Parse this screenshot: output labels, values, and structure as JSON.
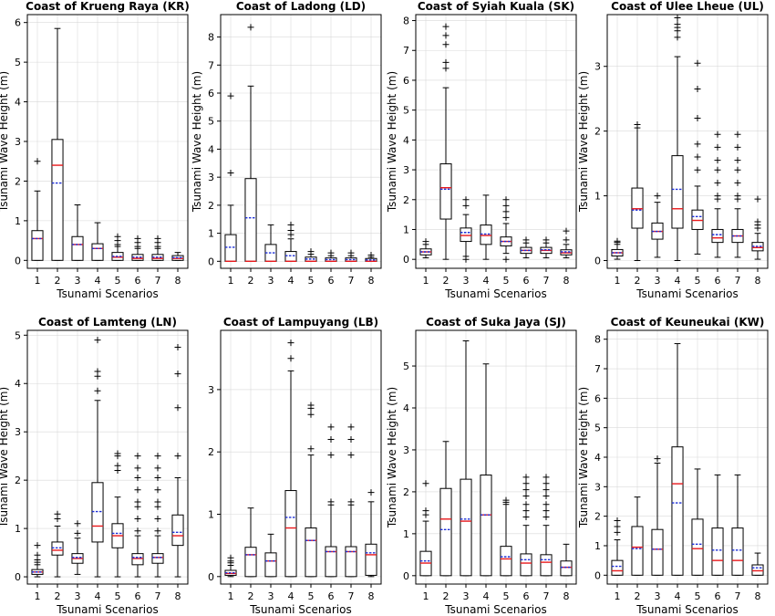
{
  "chart_data": [
    {
      "type": "box",
      "title": "Coast of Krueng Raya (KR)",
      "xlabel": "Tsunami Scenarios",
      "ylabel": "Tsunami Wave Height (m)",
      "categories": [
        "1",
        "2",
        "3",
        "4",
        "5",
        "6",
        "7",
        "8"
      ],
      "ylim": [
        -0.2,
        6.2
      ],
      "yticks": [
        0,
        1,
        2,
        3,
        4,
        5,
        6
      ],
      "grid": true,
      "boxes": [
        {
          "q1": 0,
          "median": 0.55,
          "q3": 0.75,
          "mean": 0.55,
          "whisker_low": 0,
          "whisker_high": 1.75,
          "fliers": [
            2.5
          ]
        },
        {
          "q1": 0,
          "median": 2.4,
          "q3": 3.05,
          "mean": 1.95,
          "whisker_low": 0,
          "whisker_high": 5.85,
          "fliers": []
        },
        {
          "q1": 0,
          "median": 0.4,
          "q3": 0.6,
          "mean": 0.4,
          "whisker_low": 0,
          "whisker_high": 1.4,
          "fliers": []
        },
        {
          "q1": 0,
          "median": 0.3,
          "q3": 0.42,
          "mean": 0.3,
          "whisker_low": 0,
          "whisker_high": 0.95,
          "fliers": []
        },
        {
          "q1": 0,
          "median": 0.08,
          "q3": 0.2,
          "mean": 0.1,
          "whisker_low": 0,
          "whisker_high": 0.35,
          "fliers": [
            0.4,
            0.5,
            0.6
          ]
        },
        {
          "q1": 0,
          "median": 0.05,
          "q3": 0.15,
          "mean": 0.08,
          "whisker_low": 0,
          "whisker_high": 0.3,
          "fliers": [
            0.35,
            0.45,
            0.55
          ]
        },
        {
          "q1": 0,
          "median": 0.05,
          "q3": 0.15,
          "mean": 0.08,
          "whisker_low": 0,
          "whisker_high": 0.3,
          "fliers": [
            0.35,
            0.45,
            0.55
          ]
        },
        {
          "q1": 0,
          "median": 0.05,
          "q3": 0.12,
          "mean": 0.07,
          "whisker_low": 0,
          "whisker_high": 0.2,
          "fliers": []
        }
      ]
    },
    {
      "type": "box",
      "title": "Coast of Ladong (LD)",
      "xlabel": "",
      "ylabel": "Tsunami Wave Height (m)",
      "categories": [
        "1",
        "2",
        "3",
        "4",
        "5",
        "6",
        "7",
        "8"
      ],
      "ylim": [
        -0.25,
        8.8
      ],
      "yticks": [
        0,
        1,
        2,
        3,
        4,
        5,
        6,
        7,
        8
      ],
      "grid": true,
      "boxes": [
        {
          "q1": 0,
          "median": 0,
          "q3": 0.95,
          "mean": 0.5,
          "whisker_low": 0,
          "whisker_high": 2.0,
          "fliers": [
            3.15,
            5.9
          ]
        },
        {
          "q1": 0,
          "median": 0,
          "q3": 2.95,
          "mean": 1.55,
          "whisker_low": 0,
          "whisker_high": 6.25,
          "fliers": [
            8.35
          ]
        },
        {
          "q1": 0,
          "median": 0,
          "q3": 0.6,
          "mean": 0.3,
          "whisker_low": 0,
          "whisker_high": 1.3,
          "fliers": []
        },
        {
          "q1": 0,
          "median": 0,
          "q3": 0.35,
          "mean": 0.2,
          "whisker_low": 0,
          "whisker_high": 0.8,
          "fliers": [
            0.95,
            1.1,
            1.3
          ]
        },
        {
          "q1": 0,
          "median": 0,
          "q3": 0.15,
          "mean": 0.08,
          "whisker_low": 0,
          "whisker_high": 0.25,
          "fliers": [
            0.35
          ]
        },
        {
          "q1": 0,
          "median": 0,
          "q3": 0.12,
          "mean": 0.06,
          "whisker_low": 0,
          "whisker_high": 0.2,
          "fliers": [
            0.3
          ]
        },
        {
          "q1": 0,
          "median": 0,
          "q3": 0.12,
          "mean": 0.06,
          "whisker_low": 0,
          "whisker_high": 0.2,
          "fliers": [
            0.3
          ]
        },
        {
          "q1": 0,
          "median": 0,
          "q3": 0.1,
          "mean": 0.05,
          "whisker_low": 0,
          "whisker_high": 0.15,
          "fliers": [
            0.22
          ]
        }
      ]
    },
    {
      "type": "box",
      "title": "Coast of Syiah Kuala (SK)",
      "xlabel": "Tsunami Scenarios",
      "ylabel": "Tsunami Wave Height (m)",
      "categories": [
        "1",
        "2",
        "3",
        "4",
        "5",
        "6",
        "7",
        "8"
      ],
      "ylim": [
        -0.3,
        8.2
      ],
      "yticks": [
        0,
        1,
        2,
        3,
        4,
        5,
        6,
        7,
        8
      ],
      "grid": true,
      "boxes": [
        {
          "q1": 0.15,
          "median": 0.25,
          "q3": 0.35,
          "mean": 0.25,
          "whisker_low": 0.05,
          "whisker_high": 0.5,
          "fliers": [
            0.6
          ]
        },
        {
          "q1": 1.35,
          "median": 2.4,
          "q3": 3.2,
          "mean": 2.35,
          "whisker_low": 0,
          "whisker_high": 5.75,
          "fliers": [
            6.4,
            6.6,
            7.2,
            7.5,
            7.8
          ]
        },
        {
          "q1": 0.6,
          "median": 0.8,
          "q3": 1.05,
          "mean": 0.9,
          "whisker_low": 0.1,
          "whisker_high": 1.5,
          "fliers": [
            1.8,
            2.0,
            0.0
          ]
        },
        {
          "q1": 0.5,
          "median": 0.8,
          "q3": 1.15,
          "mean": 0.85,
          "whisker_low": 0,
          "whisker_high": 2.15,
          "fliers": []
        },
        {
          "q1": 0.45,
          "median": 0.6,
          "q3": 0.75,
          "mean": 0.6,
          "whisker_low": 0.2,
          "whisker_high": 1.2,
          "fliers": [
            1.4,
            1.6,
            1.8,
            2.0,
            0.0
          ]
        },
        {
          "q1": 0.2,
          "median": 0.3,
          "q3": 0.4,
          "mean": 0.3,
          "whisker_low": 0.05,
          "whisker_high": 0.55,
          "fliers": [
            0.65
          ]
        },
        {
          "q1": 0.2,
          "median": 0.3,
          "q3": 0.4,
          "mean": 0.32,
          "whisker_low": 0.05,
          "whisker_high": 0.55,
          "fliers": [
            0.65
          ]
        },
        {
          "q1": 0.15,
          "median": 0.22,
          "q3": 0.32,
          "mean": 0.25,
          "whisker_low": 0.05,
          "whisker_high": 0.5,
          "fliers": [
            0.65,
            0.95
          ]
        }
      ]
    },
    {
      "type": "box",
      "title": "Coast of Ulee Lheue (UL)",
      "xlabel": "Tsunami Scenarios",
      "ylabel": "Tsunami Wave Height (m)",
      "categories": [
        "1",
        "2",
        "3",
        "4",
        "5",
        "6",
        "7",
        "8"
      ],
      "ylim": [
        -0.12,
        3.8
      ],
      "yticks": [
        0,
        1,
        2,
        3
      ],
      "grid": true,
      "boxes": [
        {
          "q1": 0.07,
          "median": 0.12,
          "q3": 0.17,
          "mean": 0.12,
          "whisker_low": 0.02,
          "whisker_high": 0.25,
          "fliers": [
            0.28,
            0.3
          ]
        },
        {
          "q1": 0.5,
          "median": 0.8,
          "q3": 1.12,
          "mean": 0.78,
          "whisker_low": 0,
          "whisker_high": 2.05,
          "fliers": [
            2.1
          ]
        },
        {
          "q1": 0.33,
          "median": 0.45,
          "q3": 0.58,
          "mean": 0.45,
          "whisker_low": 0.05,
          "whisker_high": 0.9,
          "fliers": [
            1.0
          ]
        },
        {
          "q1": 0.5,
          "median": 0.8,
          "q3": 1.62,
          "mean": 1.1,
          "whisker_low": 0,
          "whisker_high": 3.15,
          "fliers": [
            3.45,
            3.55,
            3.65,
            3.75,
            3.6
          ]
        },
        {
          "q1": 0.48,
          "median": 0.62,
          "q3": 0.78,
          "mean": 0.68,
          "whisker_low": 0.1,
          "whisker_high": 1.15,
          "fliers": [
            1.4,
            1.6,
            1.8,
            2.2,
            2.65,
            3.05
          ]
        },
        {
          "q1": 0.28,
          "median": 0.35,
          "q3": 0.48,
          "mean": 0.4,
          "whisker_low": 0.05,
          "whisker_high": 0.8,
          "fliers": [
            0.95,
            1.0,
            1.2,
            1.4,
            1.55,
            1.75,
            1.95
          ]
        },
        {
          "q1": 0.28,
          "median": 0.38,
          "q3": 0.48,
          "mean": 0.38,
          "whisker_low": 0.05,
          "whisker_high": 0.8,
          "fliers": [
            0.95,
            1.0,
            1.2,
            1.4,
            1.55,
            1.75,
            1.95
          ]
        },
        {
          "q1": 0.15,
          "median": 0.2,
          "q3": 0.28,
          "mean": 0.22,
          "whisker_low": 0.02,
          "whisker_high": 0.42,
          "fliers": [
            0.5,
            0.55,
            0.6,
            0.95
          ]
        }
      ]
    },
    {
      "type": "box",
      "title": "Coast of Lamteng (LN)",
      "xlabel": "Tsunami Scenarios",
      "ylabel": "Tsunami Wave Height (m)",
      "categories": [
        "1",
        "2",
        "3",
        "4",
        "5",
        "6",
        "7",
        "8"
      ],
      "ylim": [
        -0.15,
        5.1
      ],
      "yticks": [
        0,
        1,
        2,
        3,
        4,
        5
      ],
      "grid": true,
      "boxes": [
        {
          "q1": 0.05,
          "median": 0.1,
          "q3": 0.15,
          "mean": 0.1,
          "whisker_low": 0,
          "whisker_high": 0.25,
          "fliers": [
            0.3,
            0.35,
            0.45,
            0.65
          ]
        },
        {
          "q1": 0.45,
          "median": 0.55,
          "q3": 0.72,
          "mean": 0.6,
          "whisker_low": 0,
          "whisker_high": 1.05,
          "fliers": [
            1.2,
            1.3
          ]
        },
        {
          "q1": 0.28,
          "median": 0.38,
          "q3": 0.48,
          "mean": 0.4,
          "whisker_low": 0.05,
          "whisker_high": 0.8,
          "fliers": [
            0.9,
            1.1
          ]
        },
        {
          "q1": 0.72,
          "median": 1.05,
          "q3": 1.95,
          "mean": 1.35,
          "whisker_low": 0,
          "whisker_high": 3.65,
          "fliers": [
            3.85,
            4.15,
            4.25,
            4.9
          ]
        },
        {
          "q1": 0.6,
          "median": 0.85,
          "q3": 1.1,
          "mean": 0.9,
          "whisker_low": 0,
          "whisker_high": 1.65,
          "fliers": [
            2.2,
            2.3,
            2.5,
            2.55
          ]
        },
        {
          "q1": 0.25,
          "median": 0.38,
          "q3": 0.48,
          "mean": 0.4,
          "whisker_low": 0,
          "whisker_high": 0.85,
          "fliers": [
            0.95,
            1.2,
            1.45,
            1.55,
            1.8,
            2.05,
            2.25,
            2.5
          ]
        },
        {
          "q1": 0.28,
          "median": 0.4,
          "q3": 0.48,
          "mean": 0.4,
          "whisker_low": 0,
          "whisker_high": 0.85,
          "fliers": [
            0.95,
            1.2,
            1.45,
            1.55,
            1.8,
            2.05,
            2.25,
            2.5
          ]
        },
        {
          "q1": 0.65,
          "median": 0.85,
          "q3": 1.28,
          "mean": 0.92,
          "whisker_low": 0,
          "whisker_high": 2.05,
          "fliers": [
            2.5,
            3.5,
            4.2,
            4.75
          ]
        }
      ]
    },
    {
      "type": "box",
      "title": "Coast of Lampuyang (LB)",
      "xlabel": "Tsunami Scenarios",
      "ylabel": "",
      "categories": [
        "1",
        "2",
        "3",
        "4",
        "5",
        "6",
        "7",
        "8"
      ],
      "ylim": [
        -0.12,
        3.95
      ],
      "yticks": [
        0,
        1,
        2,
        3
      ],
      "grid": true,
      "boxes": [
        {
          "q1": 0.02,
          "median": 0.05,
          "q3": 0.1,
          "mean": 0.06,
          "whisker_low": 0,
          "whisker_high": 0.18,
          "fliers": [
            0.22,
            0.25,
            0.3
          ]
        },
        {
          "q1": 0,
          "median": 0.35,
          "q3": 0.47,
          "mean": 0.35,
          "whisker_low": 0,
          "whisker_high": 1.1,
          "fliers": []
        },
        {
          "q1": 0,
          "median": 0.25,
          "q3": 0.38,
          "mean": 0.25,
          "whisker_low": 0,
          "whisker_high": 0.68,
          "fliers": []
        },
        {
          "q1": 0,
          "median": 0.78,
          "q3": 1.38,
          "mean": 0.95,
          "whisker_low": 0,
          "whisker_high": 3.3,
          "fliers": [
            3.5,
            3.75
          ]
        },
        {
          "q1": 0,
          "median": 0.58,
          "q3": 0.78,
          "mean": 0.58,
          "whisker_low": 0,
          "whisker_high": 1.95,
          "fliers": [
            2.05,
            2.6,
            2.7,
            2.75
          ]
        },
        {
          "q1": 0,
          "median": 0.4,
          "q3": 0.48,
          "mean": 0.4,
          "whisker_low": 0,
          "whisker_high": 1.15,
          "fliers": [
            1.2,
            1.95,
            2.2,
            2.4
          ]
        },
        {
          "q1": 0,
          "median": 0.4,
          "q3": 0.48,
          "mean": 0.4,
          "whisker_low": 0,
          "whisker_high": 1.15,
          "fliers": [
            1.2,
            1.95,
            2.2,
            2.4
          ]
        },
        {
          "q1": 0.02,
          "median": 0.35,
          "q3": 0.52,
          "mean": 0.38,
          "whisker_low": 0,
          "whisker_high": 1.2,
          "fliers": [
            1.35
          ]
        }
      ]
    },
    {
      "type": "box",
      "title": "Coast of Suka Jaya (SJ)",
      "xlabel": "Tsunami Scenarios",
      "ylabel": "Tsunami Wave Height (m)",
      "categories": [
        "1",
        "2",
        "3",
        "4",
        "5",
        "6",
        "7",
        "8"
      ],
      "ylim": [
        -0.2,
        5.85
      ],
      "yticks": [
        0,
        1,
        2,
        3,
        4,
        5
      ],
      "grid": true,
      "boxes": [
        {
          "q1": 0,
          "median": 0.3,
          "q3": 0.58,
          "mean": 0.35,
          "whisker_low": 0,
          "whisker_high": 1.3,
          "fliers": [
            1.45,
            1.55,
            2.2
          ]
        },
        {
          "q1": 0,
          "median": 1.35,
          "q3": 2.08,
          "mean": 1.1,
          "whisker_low": 0,
          "whisker_high": 3.2,
          "fliers": []
        },
        {
          "q1": 0,
          "median": 1.3,
          "q3": 2.3,
          "mean": 1.35,
          "whisker_low": 0,
          "whisker_high": 5.6,
          "fliers": []
        },
        {
          "q1": 0,
          "median": 1.45,
          "q3": 2.4,
          "mean": 1.45,
          "whisker_low": 0,
          "whisker_high": 5.05,
          "fliers": []
        },
        {
          "q1": 0,
          "median": 0.4,
          "q3": 0.7,
          "mean": 0.45,
          "whisker_low": 0,
          "whisker_high": 1.7,
          "fliers": [
            1.75,
            1.8
          ]
        },
        {
          "q1": 0,
          "median": 0.3,
          "q3": 0.52,
          "mean": 0.38,
          "whisker_low": 0,
          "whisker_high": 1.2,
          "fliers": [
            1.4,
            1.55,
            1.7,
            1.9,
            2.05,
            2.2,
            2.35
          ]
        },
        {
          "q1": 0,
          "median": 0.32,
          "q3": 0.5,
          "mean": 0.38,
          "whisker_low": 0,
          "whisker_high": 1.2,
          "fliers": [
            1.4,
            1.55,
            1.7,
            1.9,
            2.05,
            2.2,
            2.35
          ]
        },
        {
          "q1": 0,
          "median": 0.2,
          "q3": 0.35,
          "mean": 0.2,
          "whisker_low": 0,
          "whisker_high": 0.75,
          "fliers": []
        }
      ]
    },
    {
      "type": "box",
      "title": "Coast of Keuneukai (KW)",
      "xlabel": "Tsunami Scenarios",
      "ylabel": "Tsunami Wave Height (m)",
      "categories": [
        "1",
        "2",
        "3",
        "4",
        "5",
        "6",
        "7",
        "8"
      ],
      "ylim": [
        -0.3,
        8.3
      ],
      "yticks": [
        0,
        1,
        2,
        3,
        4,
        5,
        6,
        7,
        8
      ],
      "grid": true,
      "boxes": [
        {
          "q1": 0,
          "median": 0.15,
          "q3": 0.5,
          "mean": 0.3,
          "whisker_low": 0,
          "whisker_high": 1.2,
          "fliers": [
            1.45,
            1.65,
            1.85
          ]
        },
        {
          "q1": 0,
          "median": 0.95,
          "q3": 1.65,
          "mean": 0.9,
          "whisker_low": 0,
          "whisker_high": 2.65,
          "fliers": []
        },
        {
          "q1": 0,
          "median": 0.88,
          "q3": 1.55,
          "mean": 0.88,
          "whisker_low": 0,
          "whisker_high": 3.8,
          "fliers": [
            3.95
          ]
        },
        {
          "q1": 0,
          "median": 3.1,
          "q3": 4.35,
          "mean": 2.45,
          "whisker_low": 0,
          "whisker_high": 7.85,
          "fliers": []
        },
        {
          "q1": 0,
          "median": 0.9,
          "q3": 1.9,
          "mean": 1.05,
          "whisker_low": 0,
          "whisker_high": 3.6,
          "fliers": []
        },
        {
          "q1": 0,
          "median": 0.5,
          "q3": 1.6,
          "mean": 0.85,
          "whisker_low": 0,
          "whisker_high": 3.4,
          "fliers": []
        },
        {
          "q1": 0,
          "median": 0.5,
          "q3": 1.6,
          "mean": 0.85,
          "whisker_low": 0,
          "whisker_high": 3.4,
          "fliers": []
        },
        {
          "q1": 0,
          "median": 0.15,
          "q3": 0.35,
          "mean": 0.25,
          "whisker_low": 0,
          "whisker_high": 0.75,
          "fliers": []
        }
      ]
    }
  ],
  "colors": {
    "median": "#e8191c",
    "mean": "#1c2ed6",
    "box_edge": "#000000",
    "grid": "#d9d9d9"
  }
}
